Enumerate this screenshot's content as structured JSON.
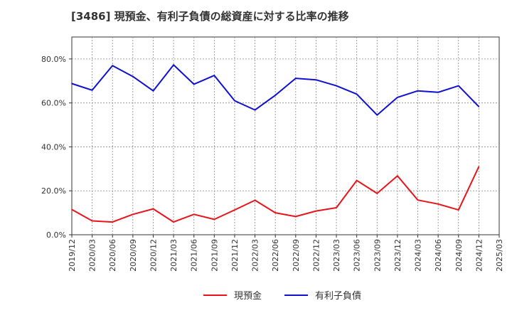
{
  "chart_data": {
    "type": "line",
    "title": "[3486]  現預金、有利子負債の総資産に対する比率の推移",
    "xlabel": "",
    "ylabel": "",
    "ylim": [
      0,
      90
    ],
    "y_ticks": [
      0,
      20,
      40,
      60,
      80
    ],
    "y_tick_labels": [
      "0.0%",
      "20.0%",
      "40.0%",
      "60.0%",
      "80.0%"
    ],
    "categories": [
      "2019/12",
      "2020/03",
      "2020/06",
      "2020/09",
      "2020/12",
      "2021/03",
      "2021/06",
      "2021/09",
      "2021/12",
      "2022/03",
      "2022/06",
      "2022/09",
      "2022/12",
      "2023/03",
      "2023/06",
      "2023/09",
      "2023/12",
      "2024/03",
      "2024/06",
      "2024/09",
      "2024/12",
      "2025/03"
    ],
    "grid": true,
    "legend_position": "bottom-center",
    "series": [
      {
        "name": "現預金",
        "color": "#e8141a",
        "values": [
          11.5,
          6.3,
          5.8,
          9.3,
          11.8,
          5.8,
          9.3,
          7.0,
          11.3,
          15.7,
          10.0,
          8.3,
          10.8,
          12.3,
          24.7,
          18.8,
          26.8,
          15.8,
          14.0,
          11.3,
          31.0,
          null
        ]
      },
      {
        "name": "有利子負債",
        "color": "#1010d0",
        "values": [
          68.8,
          65.8,
          77.0,
          72.0,
          65.5,
          77.3,
          68.5,
          72.5,
          61.0,
          56.8,
          63.5,
          71.2,
          70.5,
          67.8,
          64.0,
          54.5,
          62.5,
          65.5,
          64.8,
          67.8,
          58.3,
          null
        ]
      }
    ]
  }
}
